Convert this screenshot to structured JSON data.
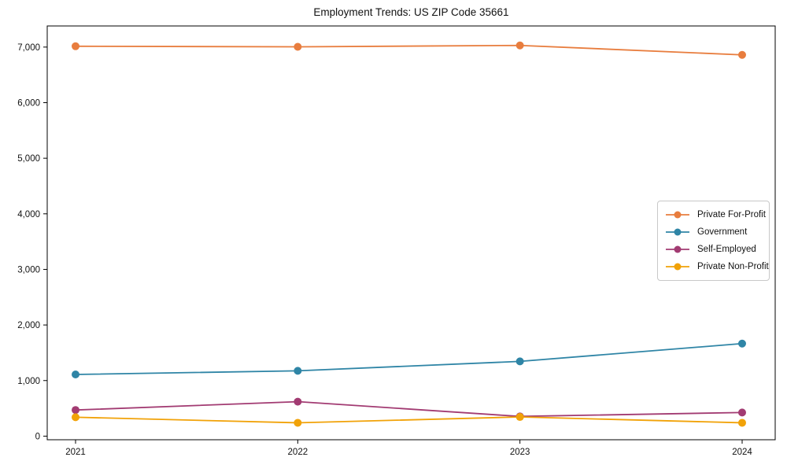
{
  "chart_data": {
    "type": "line",
    "title": "Employment Trends: US ZIP Code 35661",
    "x": [
      "2021",
      "2022",
      "2023",
      "2024"
    ],
    "xlabel": "",
    "ylabel": "",
    "ylim": [
      -65,
      7380
    ],
    "yticks": [
      0,
      1000,
      2000,
      3000,
      4000,
      5000,
      6000,
      7000
    ],
    "ytick_labels": [
      "0",
      "1,000",
      "2,000",
      "3,000",
      "4,000",
      "5,000",
      "6,000",
      "7,000"
    ],
    "grid": false,
    "legend_position": "center right",
    "series": [
      {
        "name": "Private For-Profit",
        "color": "#e87d3e",
        "values": [
          7015,
          7005,
          7030,
          6860
        ]
      },
      {
        "name": "Government",
        "color": "#2f85a6",
        "values": [
          1110,
          1175,
          1345,
          1665
        ]
      },
      {
        "name": "Self-Employed",
        "color": "#a23b72",
        "values": [
          470,
          620,
          355,
          425
        ]
      },
      {
        "name": "Private Non-Profit",
        "color": "#f1a208",
        "values": [
          340,
          240,
          345,
          240
        ]
      }
    ]
  }
}
